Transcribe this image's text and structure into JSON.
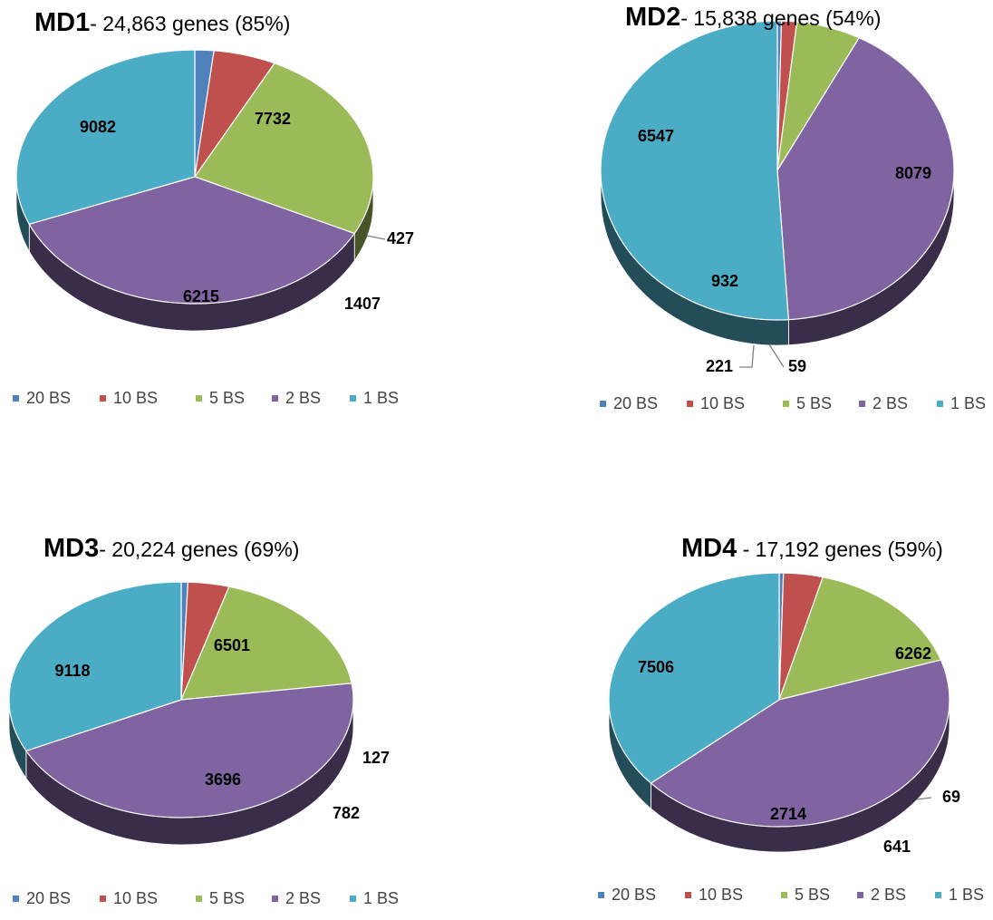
{
  "colors": {
    "20 BS": "#4F81BD",
    "10 BS": "#C0504D",
    "5 BS": "#9BBB59",
    "2 BS": "#8064A2",
    "1 BS": "#4BACC6"
  },
  "chart_data": [
    {
      "type": "pie",
      "title": "MD1",
      "subtitle": "- 24,863 genes (85%)",
      "categories": [
        "20 BS",
        "10 BS",
        "5 BS",
        "2 BS",
        "1 BS"
      ],
      "values": [
        427,
        1407,
        6215,
        9082,
        7732
      ],
      "legend": [
        "20 BS",
        "10 BS",
        "5 BS",
        "2 BS",
        "1 BS"
      ],
      "legend_position": "bottom"
    },
    {
      "type": "pie",
      "title": "MD2",
      "subtitle": "- 15,838 genes (54%)",
      "categories": [
        "20 BS",
        "10 BS",
        "5 BS",
        "2 BS",
        "1 BS"
      ],
      "values": [
        59,
        221,
        932,
        6547,
        8079
      ],
      "legend": [
        "20 BS",
        "10 BS",
        "5 BS",
        "2 BS",
        "1 BS"
      ],
      "legend_position": "bottom"
    },
    {
      "type": "pie",
      "title": "MD3",
      "subtitle": "- 20,224 genes (69%)",
      "categories": [
        "20 BS",
        "10 BS",
        "5 BS",
        "2 BS",
        "1 BS"
      ],
      "values": [
        127,
        782,
        3696,
        9118,
        6501
      ],
      "legend": [
        "20 BS",
        "10 BS",
        "5 BS",
        "2 BS",
        "1 BS"
      ],
      "legend_position": "bottom"
    },
    {
      "type": "pie",
      "title": "MD4",
      "subtitle": " - 17,192 genes (59%)",
      "categories": [
        "20 BS",
        "10 BS",
        "5 BS",
        "2 BS",
        "1 BS"
      ],
      "values": [
        69,
        641,
        2714,
        7506,
        6262
      ],
      "legend": [
        "20 BS",
        "10 BS",
        "5 BS",
        "2 BS",
        "1 BS"
      ],
      "legend_position": "bottom"
    }
  ]
}
